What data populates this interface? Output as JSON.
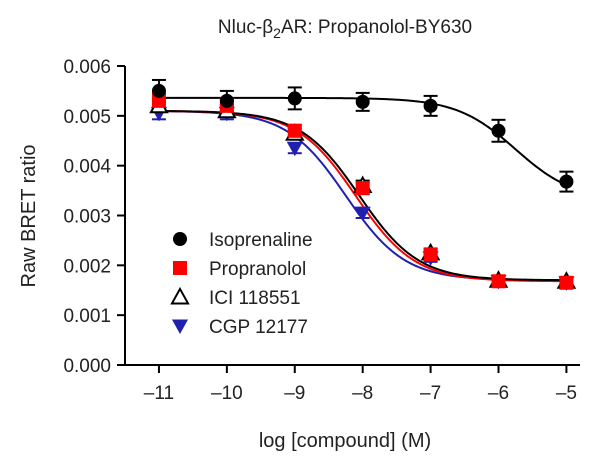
{
  "chart_data": {
    "type": "scatter",
    "title_parts": {
      "pre": "Nluc-β",
      "sub": "2",
      "post": "AR: Propanolol-BY630"
    },
    "xlabel": "log [compound] (M)",
    "ylabel": "Raw BRET ratio",
    "xlim": [
      -11.5,
      -4.8
    ],
    "ylim": [
      0,
      0.006
    ],
    "x_ticks": [
      -11,
      -10,
      -9,
      -8,
      -7,
      -6,
      -5
    ],
    "x_tick_labels": [
      "–11",
      "–10",
      "–9",
      "–8",
      "–7",
      "–6",
      "–5"
    ],
    "y_ticks": [
      0,
      0.001,
      0.002,
      0.003,
      0.004,
      0.005,
      0.006
    ],
    "y_tick_labels": [
      "0.000",
      "0.001",
      "0.002",
      "0.003",
      "0.004",
      "0.005",
      "0.006"
    ],
    "x": [
      -11,
      -10,
      -9,
      -8,
      -7,
      -6,
      -5
    ],
    "legend_position": "bottom-left",
    "series": [
      {
        "name": "Isoprenaline",
        "color": "#000000",
        "marker": "circle",
        "values": [
          0.0055,
          0.0053,
          0.00535,
          0.00528,
          0.0052,
          0.0047,
          0.00368
        ],
        "errors": [
          0.00022,
          0.0002,
          0.00022,
          0.00018,
          0.0002,
          0.00022,
          0.0002
        ],
        "fit": {
          "top": 0.00536,
          "bottom": 0.0033,
          "logEC50": -5.75,
          "hill": 1
        }
      },
      {
        "name": "Propranolol",
        "color": "#ff0000",
        "marker": "square",
        "values": [
          0.0053,
          0.0052,
          0.0047,
          0.00355,
          0.00222,
          0.00168,
          0.00165
        ],
        "errors": [
          0.00015,
          0.00015,
          0.00012,
          0.00012,
          0.0001,
          8e-05,
          8e-05
        ],
        "fit": {
          "top": 0.0051,
          "bottom": 0.00168,
          "logEC50": -8.1,
          "hill": 1
        }
      },
      {
        "name": "ICI 118551",
        "color": "#000000",
        "marker": "triangle-up",
        "values": [
          0.0052,
          0.0051,
          0.00465,
          0.0036,
          0.00225,
          0.0017,
          0.00168
        ],
        "errors": [
          0.00012,
          0.00012,
          0.0001,
          0.0001,
          8e-05,
          6e-05,
          6e-05
        ],
        "fit": {
          "top": 0.0051,
          "bottom": 0.0017,
          "logEC50": -8.05,
          "hill": 1
        }
      },
      {
        "name": "CGP 12177",
        "color": "#2020b0",
        "marker": "triangle-down",
        "values": [
          0.00505,
          0.00505,
          0.00435,
          0.00305,
          0.00215,
          0.00168,
          0.00165
        ],
        "errors": [
          0.00012,
          0.00012,
          0.0001,
          0.0001,
          8e-05,
          6e-05,
          6e-05
        ],
        "fit": {
          "top": 0.0051,
          "bottom": 0.0017,
          "logEC50": -8.25,
          "hill": 1
        }
      }
    ]
  }
}
